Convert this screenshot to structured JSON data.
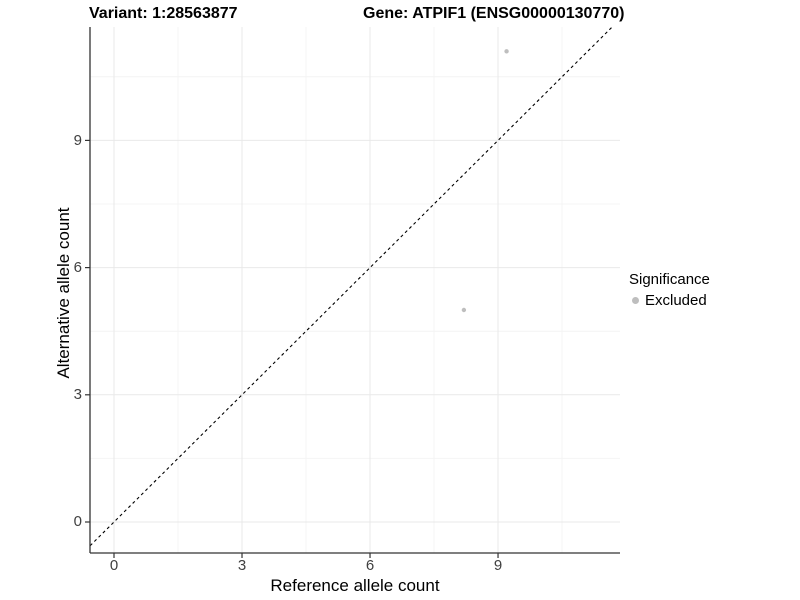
{
  "title": {
    "variant_label": "Variant: 1:28563877",
    "gene_label": "Gene: ATPIF1 (ENSG00000130770)"
  },
  "axes": {
    "x_label": "Reference allele count",
    "y_label": "Alternative allele count",
    "x_tick_labels": [
      "0",
      "3",
      "6",
      "9"
    ],
    "y_tick_labels": [
      "0",
      "3",
      "6",
      "9"
    ]
  },
  "legend": {
    "title": "Significance",
    "items": [
      {
        "label": "Excluded",
        "color": "#bebebe"
      }
    ]
  },
  "chart_data": {
    "type": "scatter",
    "title": "Variant: 1:28563877 | Gene: ATPIF1 (ENSG00000130770)",
    "xlabel": "Reference allele count",
    "ylabel": "Alternative allele count",
    "xlim": [
      -0.56,
      11.86
    ],
    "ylim": [
      -0.73,
      11.67
    ],
    "x_major_breaks": [
      0,
      3,
      6,
      9
    ],
    "y_major_breaks": [
      0,
      3,
      6,
      9
    ],
    "x_minor_breaks": [
      1.5,
      4.5,
      7.5,
      10.5
    ],
    "y_minor_breaks": [
      1.5,
      4.5,
      7.5,
      10.5
    ],
    "grid": true,
    "legend_position": "right",
    "series": [
      {
        "name": "Excluded",
        "color": "#bebebe",
        "points": [
          {
            "x": 9.2,
            "y": 11.1
          },
          {
            "x": 8.2,
            "y": 5.0
          }
        ]
      }
    ],
    "reference_line": {
      "label": "y = x",
      "style": "dashed",
      "color": "#000000",
      "from": [
        -0.56,
        -0.56
      ],
      "to": [
        11.67,
        11.67
      ]
    }
  },
  "colors": {
    "point": "#bebebe",
    "axis_line": "#333333",
    "grid_major": "#e9e9e9",
    "grid_minor": "#f4f4f4",
    "background": "#ffffff"
  }
}
